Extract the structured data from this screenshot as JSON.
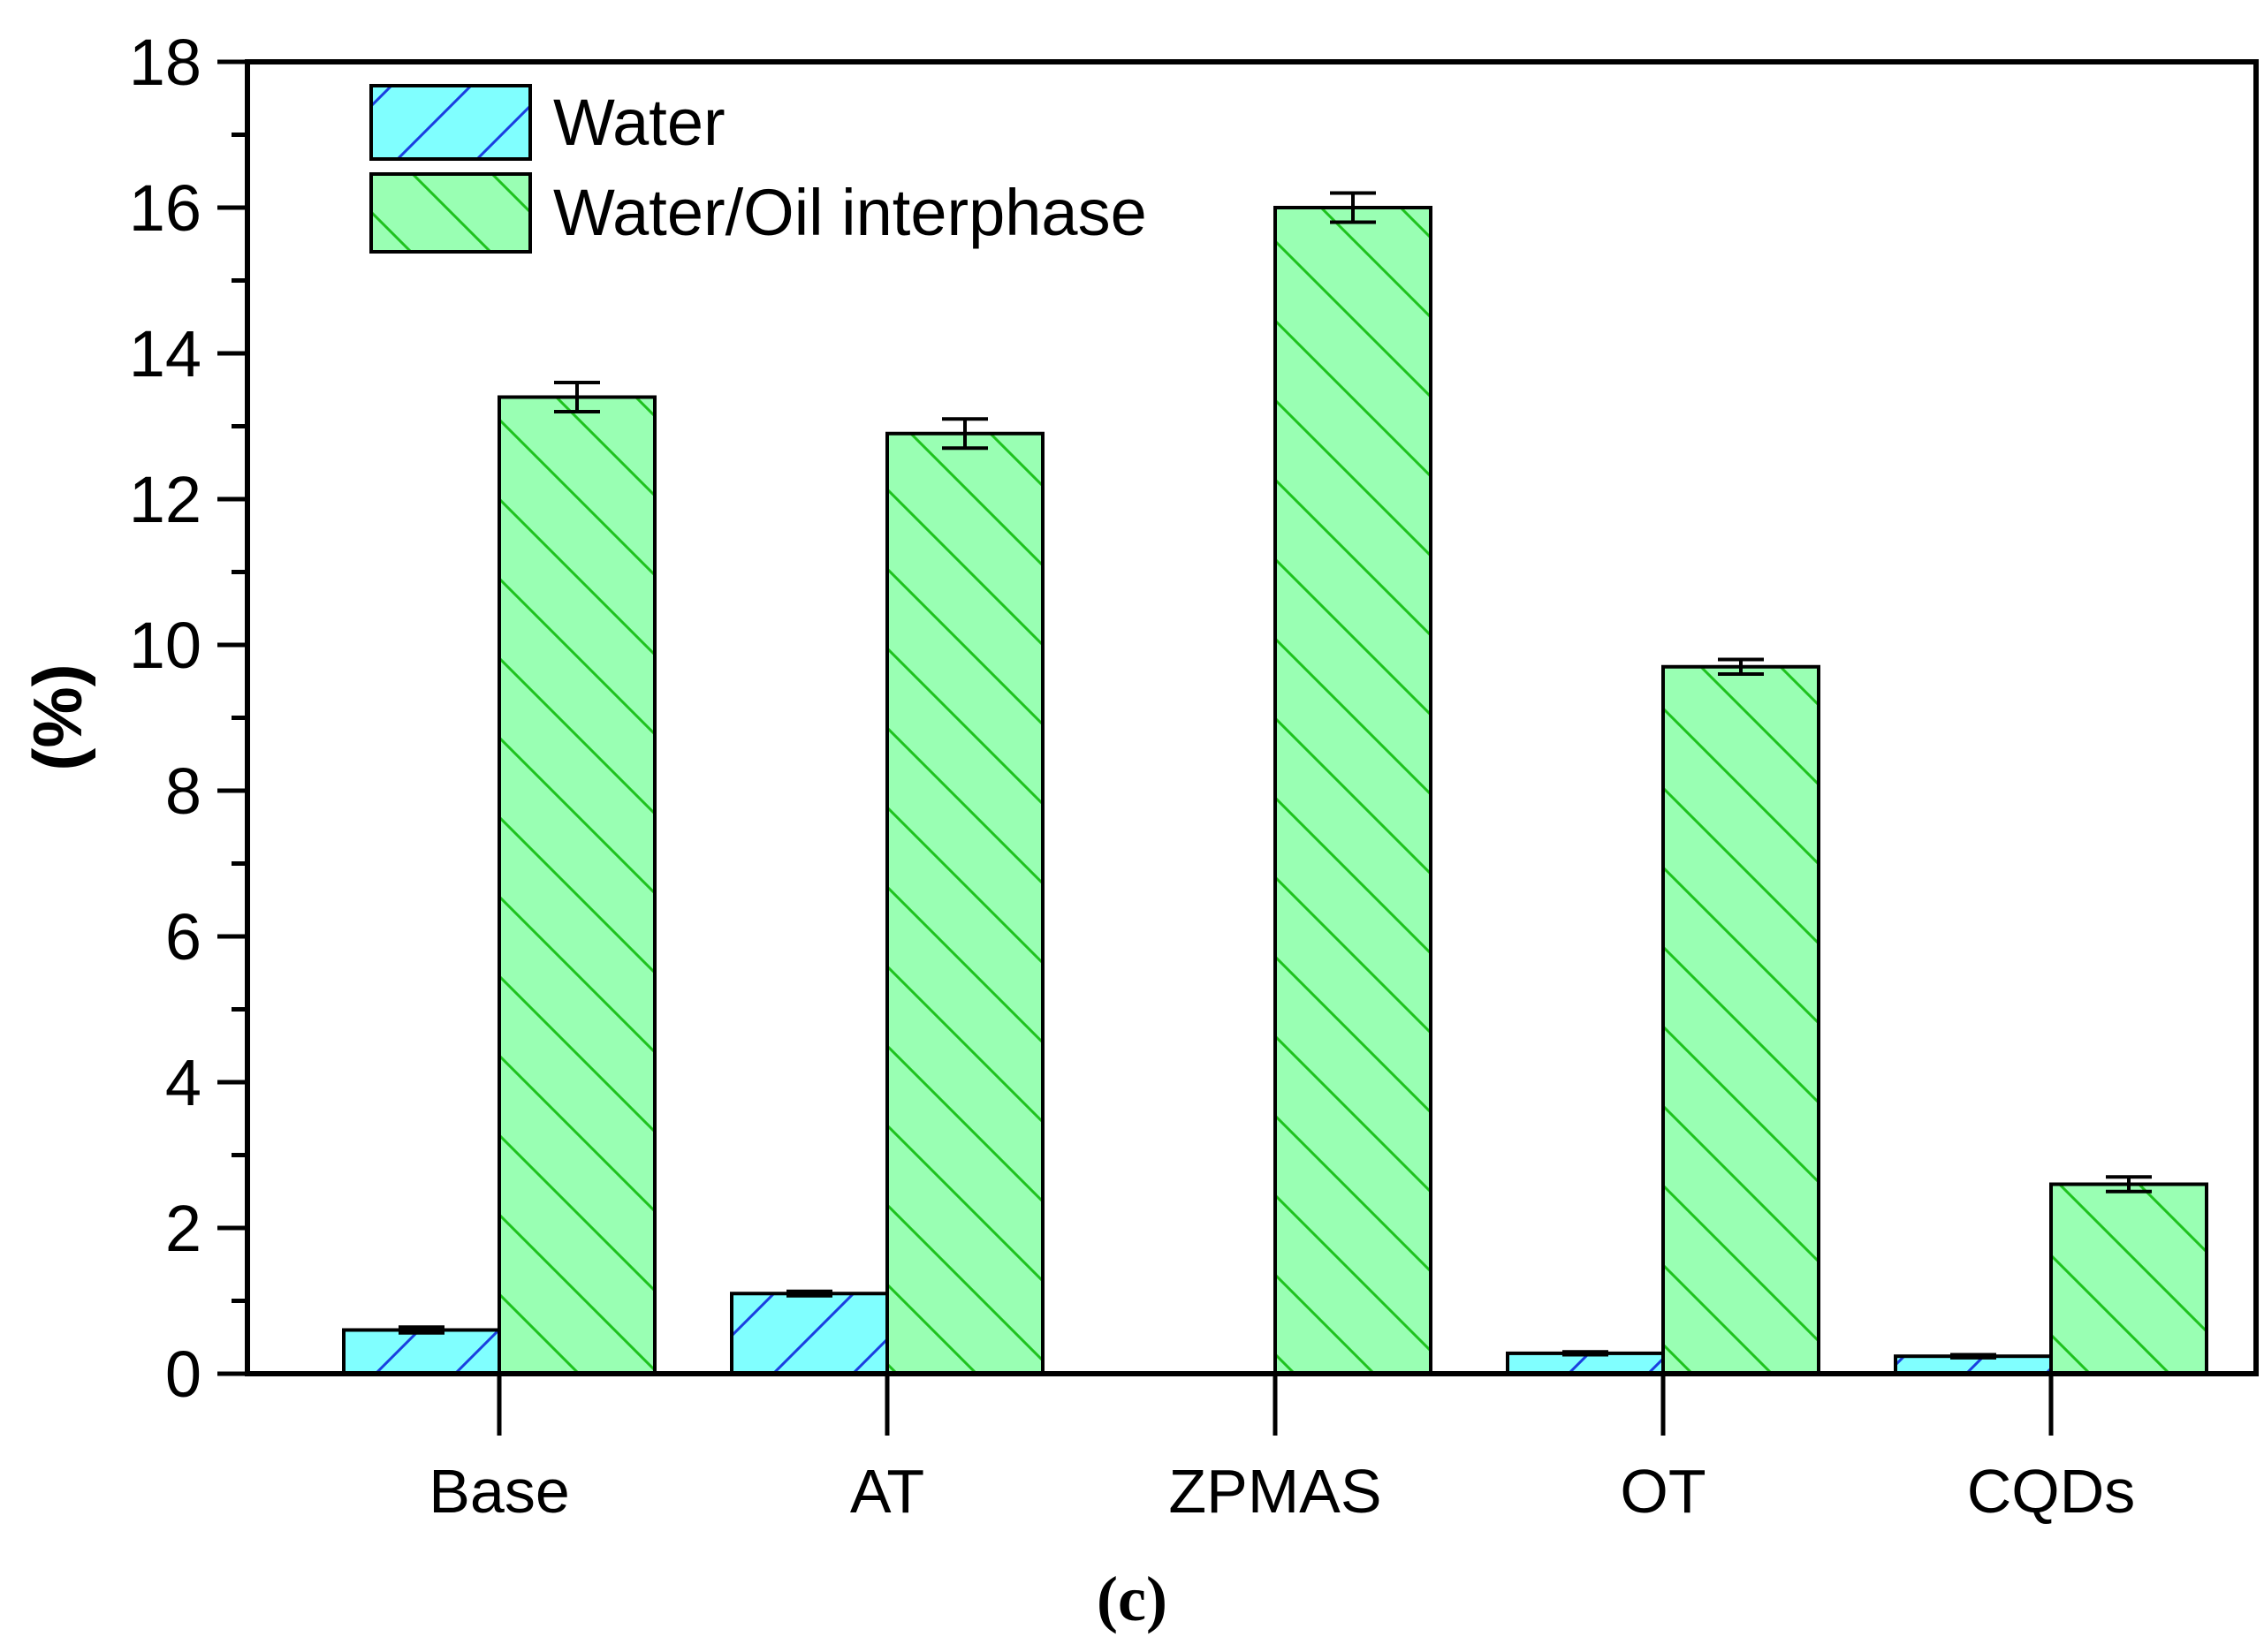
{
  "chart_data": {
    "type": "bar",
    "title": "",
    "xlabel": "",
    "ylabel": "(%)",
    "ylim": [
      0,
      18
    ],
    "yticks": [
      0,
      2,
      4,
      6,
      8,
      10,
      12,
      14,
      16,
      18
    ],
    "ytick_labels": [
      "0",
      "2",
      "4",
      "6",
      "8",
      "10",
      "12",
      "14",
      "16",
      "18"
    ],
    "categories": [
      "Base",
      "AT",
      "ZPMAS",
      "OT",
      "CQDs"
    ],
    "series": [
      {
        "name": "Water",
        "values": [
          0.6,
          1.1,
          0,
          0.28,
          0.24
        ],
        "errors": [
          0.04,
          0.03,
          0,
          0.02,
          0.02
        ],
        "fill": "#80ffff",
        "hatch": "#1a3fe0",
        "hatch_direction": "forward"
      },
      {
        "name": "Water/Oil interphase",
        "values": [
          13.4,
          12.9,
          16.0,
          9.7,
          2.6
        ],
        "errors": [
          0.2,
          0.2,
          0.2,
          0.1,
          0.1
        ],
        "fill": "#99ffb3",
        "hatch": "#1ec21e",
        "hatch_direction": "back"
      }
    ],
    "legend_position": "top-left",
    "grid": false,
    "caption": "(c)"
  }
}
